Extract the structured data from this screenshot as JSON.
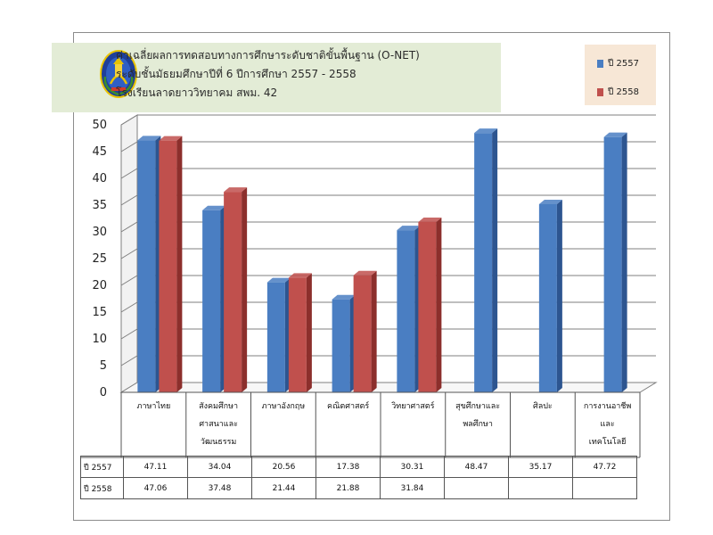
{
  "title": {
    "line1": "ค่าเฉลี่ยผลการทดสอบทางการศึกษาระดับชาติขั้นพื้นฐาน (O-NET)",
    "line2": "ระดับชั้นมัธยมศึกษาปีที่ 6 ปีการศึกษา 2557 - 2558",
    "line3": "โรงเรียนลาดยาววิทยาคม สพม. 42"
  },
  "logo": "school-emblem-icon",
  "colors": {
    "series_2557": "#4a7ec2",
    "series_2557_side": "#2d5590",
    "series_2558": "#c0504d",
    "series_2558_side": "#8c2f2c",
    "grid": "#7f7f7f"
  },
  "chart_data": {
    "type": "bar",
    "categories": [
      [
        "ภาษาไทย"
      ],
      [
        "สังคมศึกษา",
        "ศาสนาและ",
        "วัฒนธรรม"
      ],
      [
        "ภาษาอังกฤษ"
      ],
      [
        "คณิตศาสตร์"
      ],
      [
        "วิทยาศาสตร์"
      ],
      [
        "สุขศึกษาและ",
        "พลศึกษา"
      ],
      [
        "ศิลปะ"
      ],
      [
        "การงานอาชีพ",
        "และ",
        "เทคโนโลยี"
      ]
    ],
    "series": [
      {
        "name": "ปี 2557",
        "values": [
          47.11,
          34.04,
          20.56,
          17.38,
          30.31,
          48.47,
          35.17,
          47.72
        ]
      },
      {
        "name": "ปี 2558",
        "values": [
          47.06,
          37.48,
          21.44,
          21.88,
          31.84,
          null,
          null,
          null
        ]
      }
    ],
    "ylim": [
      0,
      50
    ],
    "yticks": [
      0,
      5,
      10,
      15,
      20,
      25,
      30,
      35,
      40,
      45,
      50
    ],
    "grid": true,
    "legend_position": "top-right",
    "table_rows": [
      {
        "label": "ปี 2557",
        "values": [
          "47.11",
          "34.04",
          "20.56",
          "17.38",
          "30.31",
          "48.47",
          "35.17",
          "47.72"
        ]
      },
      {
        "label": "ปี 2558",
        "values": [
          "47.06",
          "37.48",
          "21.44",
          "21.88",
          "31.84",
          "",
          "",
          ""
        ]
      }
    ]
  }
}
